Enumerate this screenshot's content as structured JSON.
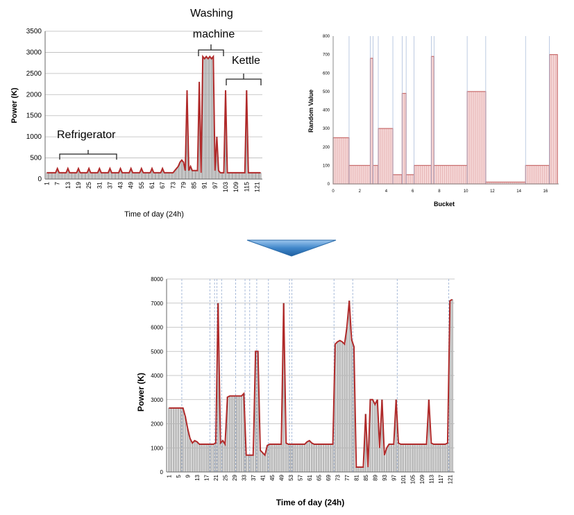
{
  "colors": {
    "line": "#b02a2a",
    "bar_fill": "#c9c9c9",
    "bar_stroke": "#8c8c8c",
    "grid": "#b9b9b9",
    "pink_fill": "#f5d6d6",
    "pink_stroke": "#c86b6b",
    "bucket_line": "#9fb4d6",
    "arrow": "#3f86c9"
  },
  "chart_data": [
    {
      "type": "area",
      "title": "",
      "xlabel": "Time of day (24h)",
      "ylabel": "Power (K)",
      "ylim": [
        0,
        3500
      ],
      "yticks": [
        0,
        500,
        1000,
        1500,
        2000,
        2500,
        3000,
        3500
      ],
      "xticks": [
        "1",
        "7",
        "13",
        "19",
        "25",
        "31",
        "37",
        "43",
        "49",
        "55",
        "61",
        "67",
        "73",
        "79",
        "85",
        "91",
        "97",
        "103",
        "109",
        "115",
        "121"
      ],
      "grid": true,
      "annotations": [
        "Refrigerator",
        "Washing machine",
        "Kettle"
      ],
      "series": [
        {
          "x": [
            1,
            5,
            6,
            7,
            8,
            11,
            12,
            13,
            14,
            17,
            18,
            19,
            20,
            23,
            24,
            25,
            26,
            29,
            30,
            31,
            32,
            35,
            36,
            37,
            38,
            41,
            42,
            43,
            44,
            47,
            48,
            49,
            50,
            53,
            54,
            55,
            56,
            59,
            60,
            61,
            62,
            65,
            66,
            67,
            68,
            71,
            72,
            73,
            74,
            76,
            77,
            78,
            79,
            80,
            81,
            82,
            83,
            84,
            85,
            86,
            87,
            88,
            89,
            90,
            91,
            92,
            93,
            94,
            95,
            96,
            97,
            98,
            99,
            100,
            101,
            102,
            103,
            104,
            105,
            106,
            107,
            108,
            109,
            110,
            111,
            112,
            113,
            114,
            115,
            116,
            117,
            118,
            119,
            120,
            121,
            122,
            123
          ],
          "values": [
            150,
            150,
            150,
            250,
            150,
            150,
            150,
            250,
            150,
            150,
            150,
            250,
            150,
            150,
            150,
            250,
            150,
            150,
            150,
            250,
            150,
            150,
            150,
            250,
            150,
            150,
            150,
            250,
            150,
            150,
            150,
            250,
            150,
            150,
            150,
            250,
            150,
            150,
            150,
            250,
            150,
            150,
            150,
            250,
            150,
            150,
            150,
            150,
            200,
            300,
            400,
            450,
            400,
            200,
            2100,
            200,
            300,
            200,
            200,
            200,
            200,
            2300,
            150,
            2900,
            2850,
            2900,
            2850,
            2900,
            2850,
            2900,
            200,
            1000,
            200,
            150,
            150,
            150,
            2100,
            150,
            150,
            150,
            150,
            150,
            150,
            150,
            150,
            150,
            150,
            150,
            2100,
            150,
            150,
            150,
            150,
            150,
            150,
            150,
            150
          ]
        }
      ]
    },
    {
      "type": "bar",
      "title": "",
      "xlabel": "Bucket",
      "ylabel": "Random Value",
      "ylim": [
        0,
        800
      ],
      "yticks": [
        0,
        100,
        200,
        300,
        400,
        500,
        600,
        700,
        800
      ],
      "xticks": [
        "0",
        "2",
        "4",
        "6",
        "8",
        "10",
        "12",
        "14",
        "16"
      ],
      "grid": false,
      "segments": [
        {
          "x0": 0,
          "x1": 1.2,
          "value": 250
        },
        {
          "x0": 1.2,
          "x1": 2.8,
          "value": 100
        },
        {
          "x0": 2.8,
          "x1": 3.0,
          "value": 680
        },
        {
          "x0": 3.0,
          "x1": 3.4,
          "value": 100
        },
        {
          "x0": 3.4,
          "x1": 4.5,
          "value": 300
        },
        {
          "x0": 4.5,
          "x1": 5.2,
          "value": 50
        },
        {
          "x0": 5.2,
          "x1": 5.5,
          "value": 490
        },
        {
          "x0": 5.5,
          "x1": 6.1,
          "value": 50
        },
        {
          "x0": 6.1,
          "x1": 7.4,
          "value": 100
        },
        {
          "x0": 7.4,
          "x1": 7.6,
          "value": 690
        },
        {
          "x0": 7.6,
          "x1": 10.1,
          "value": 100
        },
        {
          "x0": 10.1,
          "x1": 11.5,
          "value": 500
        },
        {
          "x0": 11.5,
          "x1": 14.5,
          "value": 10
        },
        {
          "x0": 14.5,
          "x1": 16.3,
          "value": 100
        },
        {
          "x0": 16.3,
          "x1": 16.9,
          "value": 700
        }
      ],
      "bucket_lines": [
        1.2,
        2.8,
        3.0,
        3.4,
        4.5,
        5.2,
        5.5,
        6.1,
        7.4,
        7.6,
        10.1,
        11.5,
        14.5,
        16.3
      ]
    },
    {
      "type": "area",
      "title": "",
      "xlabel": "Time of day (24h)",
      "ylabel": "Power (K)",
      "ylim": [
        0,
        8000
      ],
      "yticks": [
        0,
        1000,
        2000,
        3000,
        4000,
        5000,
        6000,
        7000,
        8000
      ],
      "xticks": [
        "1",
        "5",
        "9",
        "13",
        "17",
        "21",
        "25",
        "29",
        "33",
        "37",
        "41",
        "45",
        "49",
        "53",
        "57",
        "61",
        "65",
        "69",
        "73",
        "77",
        "81",
        "85",
        "89",
        "93",
        "97",
        "101",
        "105",
        "109",
        "113",
        "117",
        "121"
      ],
      "grid": true,
      "bucket_lines": [
        6.5,
        18.5,
        20.5,
        21.5,
        23.5,
        29.5,
        33.5,
        35.5,
        38.5,
        43.5,
        52.5,
        53.5,
        71.5,
        79.5,
        98.5,
        120.5
      ],
      "series": [
        {
          "x": [
            1,
            7,
            8,
            9,
            10,
            11,
            12,
            13,
            14,
            15,
            16,
            17,
            18,
            19,
            20,
            21,
            22,
            23,
            24,
            25,
            26,
            27,
            28,
            29,
            30,
            31,
            32,
            33,
            34,
            35,
            36,
            37,
            38,
            39,
            40,
            41,
            42,
            43,
            44,
            45,
            46,
            47,
            48,
            49,
            50,
            51,
            52,
            53,
            54,
            55,
            56,
            57,
            58,
            59,
            60,
            61,
            62,
            63,
            64,
            65,
            66,
            67,
            68,
            69,
            70,
            71,
            72,
            73,
            74,
            75,
            76,
            77,
            78,
            79,
            80,
            81,
            82,
            83,
            84,
            85,
            86,
            87,
            88,
            89,
            90,
            91,
            92,
            93,
            94,
            95,
            96,
            97,
            98,
            99,
            100,
            101,
            102,
            103,
            104,
            105,
            106,
            107,
            108,
            109,
            110,
            111,
            112,
            113,
            114,
            115,
            116,
            117,
            118,
            119,
            120,
            121,
            122
          ],
          "values": [
            2650,
            2650,
            2300,
            1800,
            1400,
            1200,
            1300,
            1250,
            1150,
            1150,
            1150,
            1150,
            1150,
            1150,
            1150,
            1200,
            7000,
            1200,
            1300,
            1150,
            3100,
            3150,
            3150,
            3150,
            3150,
            3150,
            3150,
            3250,
            700,
            700,
            700,
            700,
            5000,
            5000,
            900,
            800,
            700,
            1100,
            1150,
            1150,
            1150,
            1150,
            1150,
            1150,
            7000,
            1200,
            1150,
            1150,
            1150,
            1150,
            1150,
            1150,
            1150,
            1150,
            1250,
            1300,
            1200,
            1150,
            1150,
            1150,
            1150,
            1150,
            1150,
            1150,
            1150,
            1150,
            5300,
            5400,
            5450,
            5400,
            5300,
            6000,
            7100,
            5500,
            5200,
            200,
            200,
            200,
            200,
            2400,
            200,
            3000,
            3000,
            2800,
            3000,
            1000,
            3000,
            700,
            1000,
            1150,
            1150,
            1150,
            3000,
            1200,
            1150,
            1150,
            1150,
            1150,
            1150,
            1150,
            1150,
            1150,
            1150,
            1150,
            1150,
            1150,
            3000,
            1200,
            1150,
            1150,
            1150,
            1150,
            1150,
            1150,
            1200,
            7100,
            7150
          ]
        }
      ]
    }
  ]
}
